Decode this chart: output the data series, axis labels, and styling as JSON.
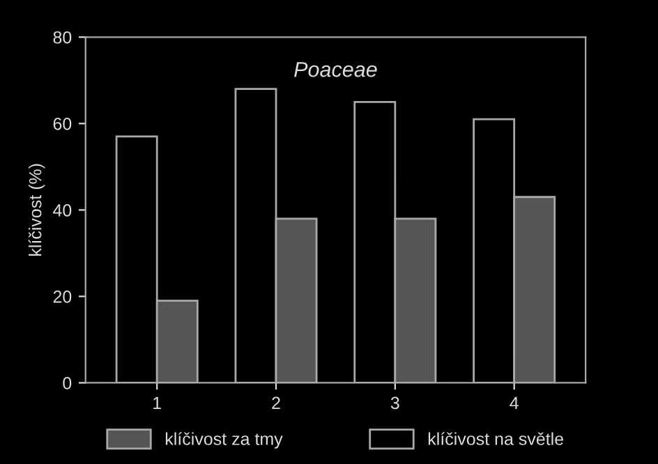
{
  "chart_data": {
    "type": "bar",
    "title": "Poaceae",
    "ylabel": "klíčivost (%)",
    "categories": [
      "1",
      "2",
      "3",
      "4"
    ],
    "series": [
      {
        "name": "klíčivost na světle",
        "color": "#000000",
        "values": [
          57,
          68,
          65,
          61
        ]
      },
      {
        "name": "klíčivost za tmy",
        "color": "#555555",
        "values": [
          19,
          38,
          38,
          43
        ]
      }
    ],
    "ylim": [
      0,
      80
    ],
    "yticks": [
      0,
      20,
      40,
      60,
      80
    ],
    "grid": false,
    "legend": "bottom"
  }
}
